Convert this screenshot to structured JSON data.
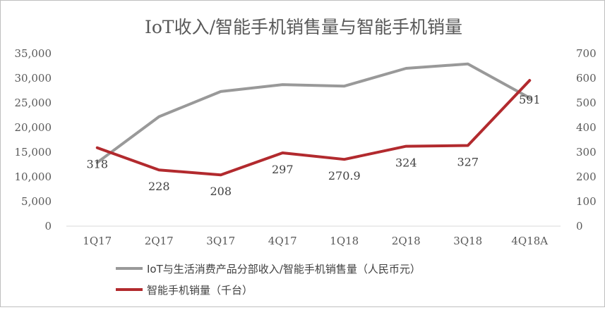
{
  "chart_data": {
    "type": "line",
    "title": "IoT收入/智能手机销售量与智能手机销量",
    "categories": [
      "1Q17",
      "2Q17",
      "3Q17",
      "4Q17",
      "1Q18",
      "2Q18",
      "3Q18",
      "4Q18A"
    ],
    "y_left": {
      "ticks": [
        "0",
        "5,000",
        "10,000",
        "15,000",
        "20,000",
        "25,000",
        "30,000",
        "35,000"
      ],
      "ylim": [
        0,
        35000
      ]
    },
    "y_right": {
      "ticks": [
        "0",
        "100",
        "200",
        "300",
        "400",
        "500",
        "600",
        "700"
      ],
      "ylim": [
        0,
        700
      ]
    },
    "grid": false,
    "legend_position": "bottom",
    "series": [
      {
        "name": "IoT与生活消费产品分部收入/智能手机销售量（人民币元）",
        "axis": "left",
        "color": "#999999",
        "values": [
          12900,
          22200,
          27300,
          28700,
          28400,
          32000,
          32900,
          26000
        ],
        "labels": []
      },
      {
        "name": "智能手机销量（千台）",
        "axis": "right",
        "color": "#b22a2e",
        "values": [
          318,
          228,
          208,
          297,
          270.9,
          324,
          327,
          591
        ],
        "labels": [
          "318",
          "228",
          "208",
          "297",
          "270.9",
          "324",
          "327",
          "591"
        ]
      }
    ]
  }
}
